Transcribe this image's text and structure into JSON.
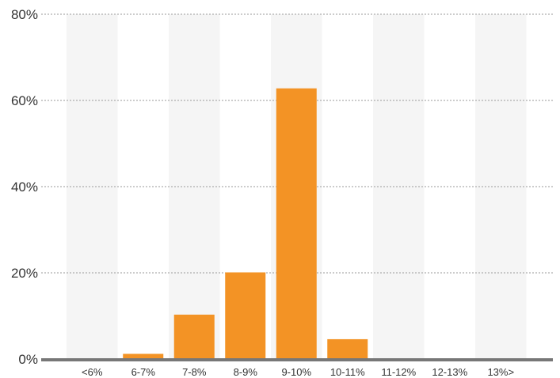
{
  "chart_data": {
    "type": "bar",
    "categories": [
      "<6%",
      "6-7%",
      "7-8%",
      "8-9%",
      "9-10%",
      "10-11%",
      "11-12%",
      "12-13%",
      "13%>"
    ],
    "values": [
      0,
      1.2,
      10.3,
      20.1,
      62.8,
      4.6,
      0,
      0,
      0
    ],
    "yticks": [
      "0%",
      "20%",
      "40%",
      "60%",
      "80%"
    ],
    "ylim": [
      0,
      80
    ],
    "grid": true,
    "colors": {
      "bar": "#f39325",
      "band": "#f5f5f5",
      "axis": "#777777"
    }
  }
}
